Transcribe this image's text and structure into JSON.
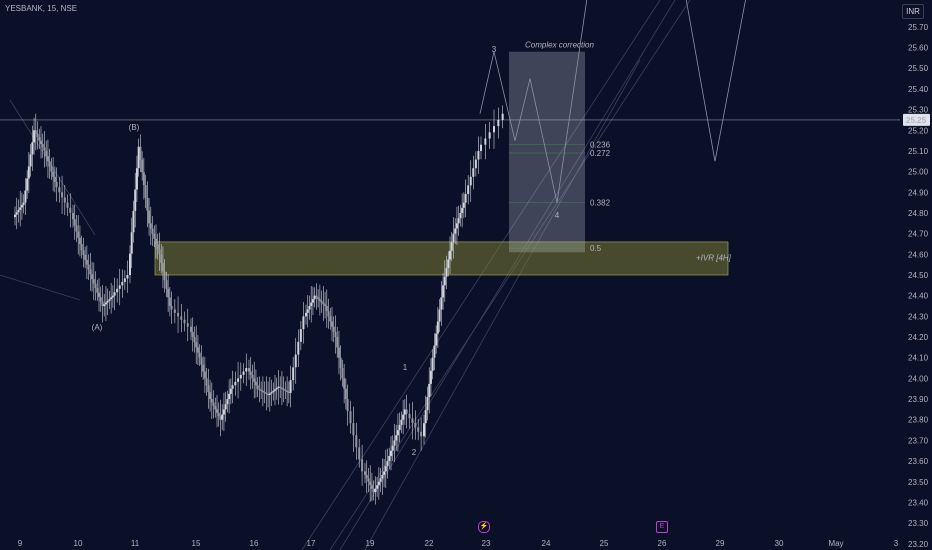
{
  "header": {
    "symbol": "YESBANK, 15, NSE",
    "currency": "INR"
  },
  "colors": {
    "background": "#0b1029",
    "candle_up": "#d1d4dc",
    "candle_down": "#d1d4dc",
    "zone": "#8a8a3a",
    "fib": "#4caf50",
    "box": "#b2b5be"
  },
  "events": {
    "dividend_icon": "lightning-icon",
    "earnings_label": "E"
  },
  "chart_data": {
    "type": "candlestick",
    "y_axis": {
      "ticks": [
        "25.70",
        "25.60",
        "25.50",
        "25.40",
        "25.30",
        "25.20",
        "25.10",
        "25.00",
        "24.90",
        "24.80",
        "24.70",
        "24.60",
        "24.50",
        "24.40",
        "24.30",
        "24.20",
        "24.10",
        "24.00",
        "23.90",
        "23.80",
        "23.70",
        "23.60",
        "23.50",
        "23.40",
        "23.30",
        "23.20"
      ],
      "ylim": [
        23.17,
        25.83
      ]
    },
    "x_axis": {
      "ticks": [
        "9",
        "10",
        "11",
        "15",
        "16",
        "17",
        "19",
        "22",
        "23",
        "24",
        "25",
        "26",
        "29",
        "30",
        "May",
        "3"
      ]
    },
    "last_price": "25.25",
    "wave_labels": [
      "(A)",
      "(B)",
      "1",
      "2",
      "3",
      "4"
    ],
    "fib_levels": [
      {
        "label": "0.236",
        "value": 25.13
      },
      {
        "label": "0.272",
        "value": 25.09
      },
      {
        "label": "0.382",
        "value": 24.85
      },
      {
        "label": "0.5",
        "value": 24.63
      }
    ],
    "annotations": {
      "box_title": "Complex correction",
      "zone_label": "+IVR [4H]"
    },
    "zone": {
      "low": 24.5,
      "high": 24.66
    },
    "box": {
      "low": 24.61,
      "high": 25.58
    },
    "close_trace": [
      [
        "9",
        24.78
      ],
      [
        "9",
        24.85
      ],
      [
        "9",
        25.2
      ],
      [
        "9",
        25.1
      ],
      [
        "9",
        24.95
      ],
      [
        "10",
        24.8
      ],
      [
        "10",
        24.62
      ],
      [
        "10",
        24.48
      ],
      [
        "10",
        24.35
      ],
      [
        "10",
        24.4
      ],
      [
        "11",
        24.5
      ],
      [
        "11",
        25.12
      ],
      [
        "11",
        24.75
      ],
      [
        "11",
        24.6
      ],
      [
        "11",
        24.35
      ],
      [
        "15",
        24.25
      ],
      [
        "15",
        24.1
      ],
      [
        "15",
        23.9
      ],
      [
        "15",
        23.8
      ],
      [
        "15",
        23.95
      ],
      [
        "16",
        24.05
      ],
      [
        "16",
        23.95
      ],
      [
        "16",
        23.92
      ],
      [
        "16",
        23.96
      ],
      [
        "16",
        23.93
      ],
      [
        "17",
        24.3
      ],
      [
        "17",
        24.4
      ],
      [
        "17",
        24.35
      ],
      [
        "17",
        24.2
      ],
      [
        "17",
        23.9
      ],
      [
        "19",
        23.55
      ],
      [
        "19",
        23.45
      ],
      [
        "19",
        23.55
      ],
      [
        "19",
        23.7
      ],
      [
        "19",
        23.85
      ],
      [
        "22",
        23.72
      ],
      [
        "22",
        24.1
      ],
      [
        "22",
        24.45
      ],
      [
        "22",
        24.7
      ],
      [
        "22",
        24.85
      ],
      [
        "23",
        25.1
      ],
      [
        "23",
        25.28
      ]
    ]
  }
}
